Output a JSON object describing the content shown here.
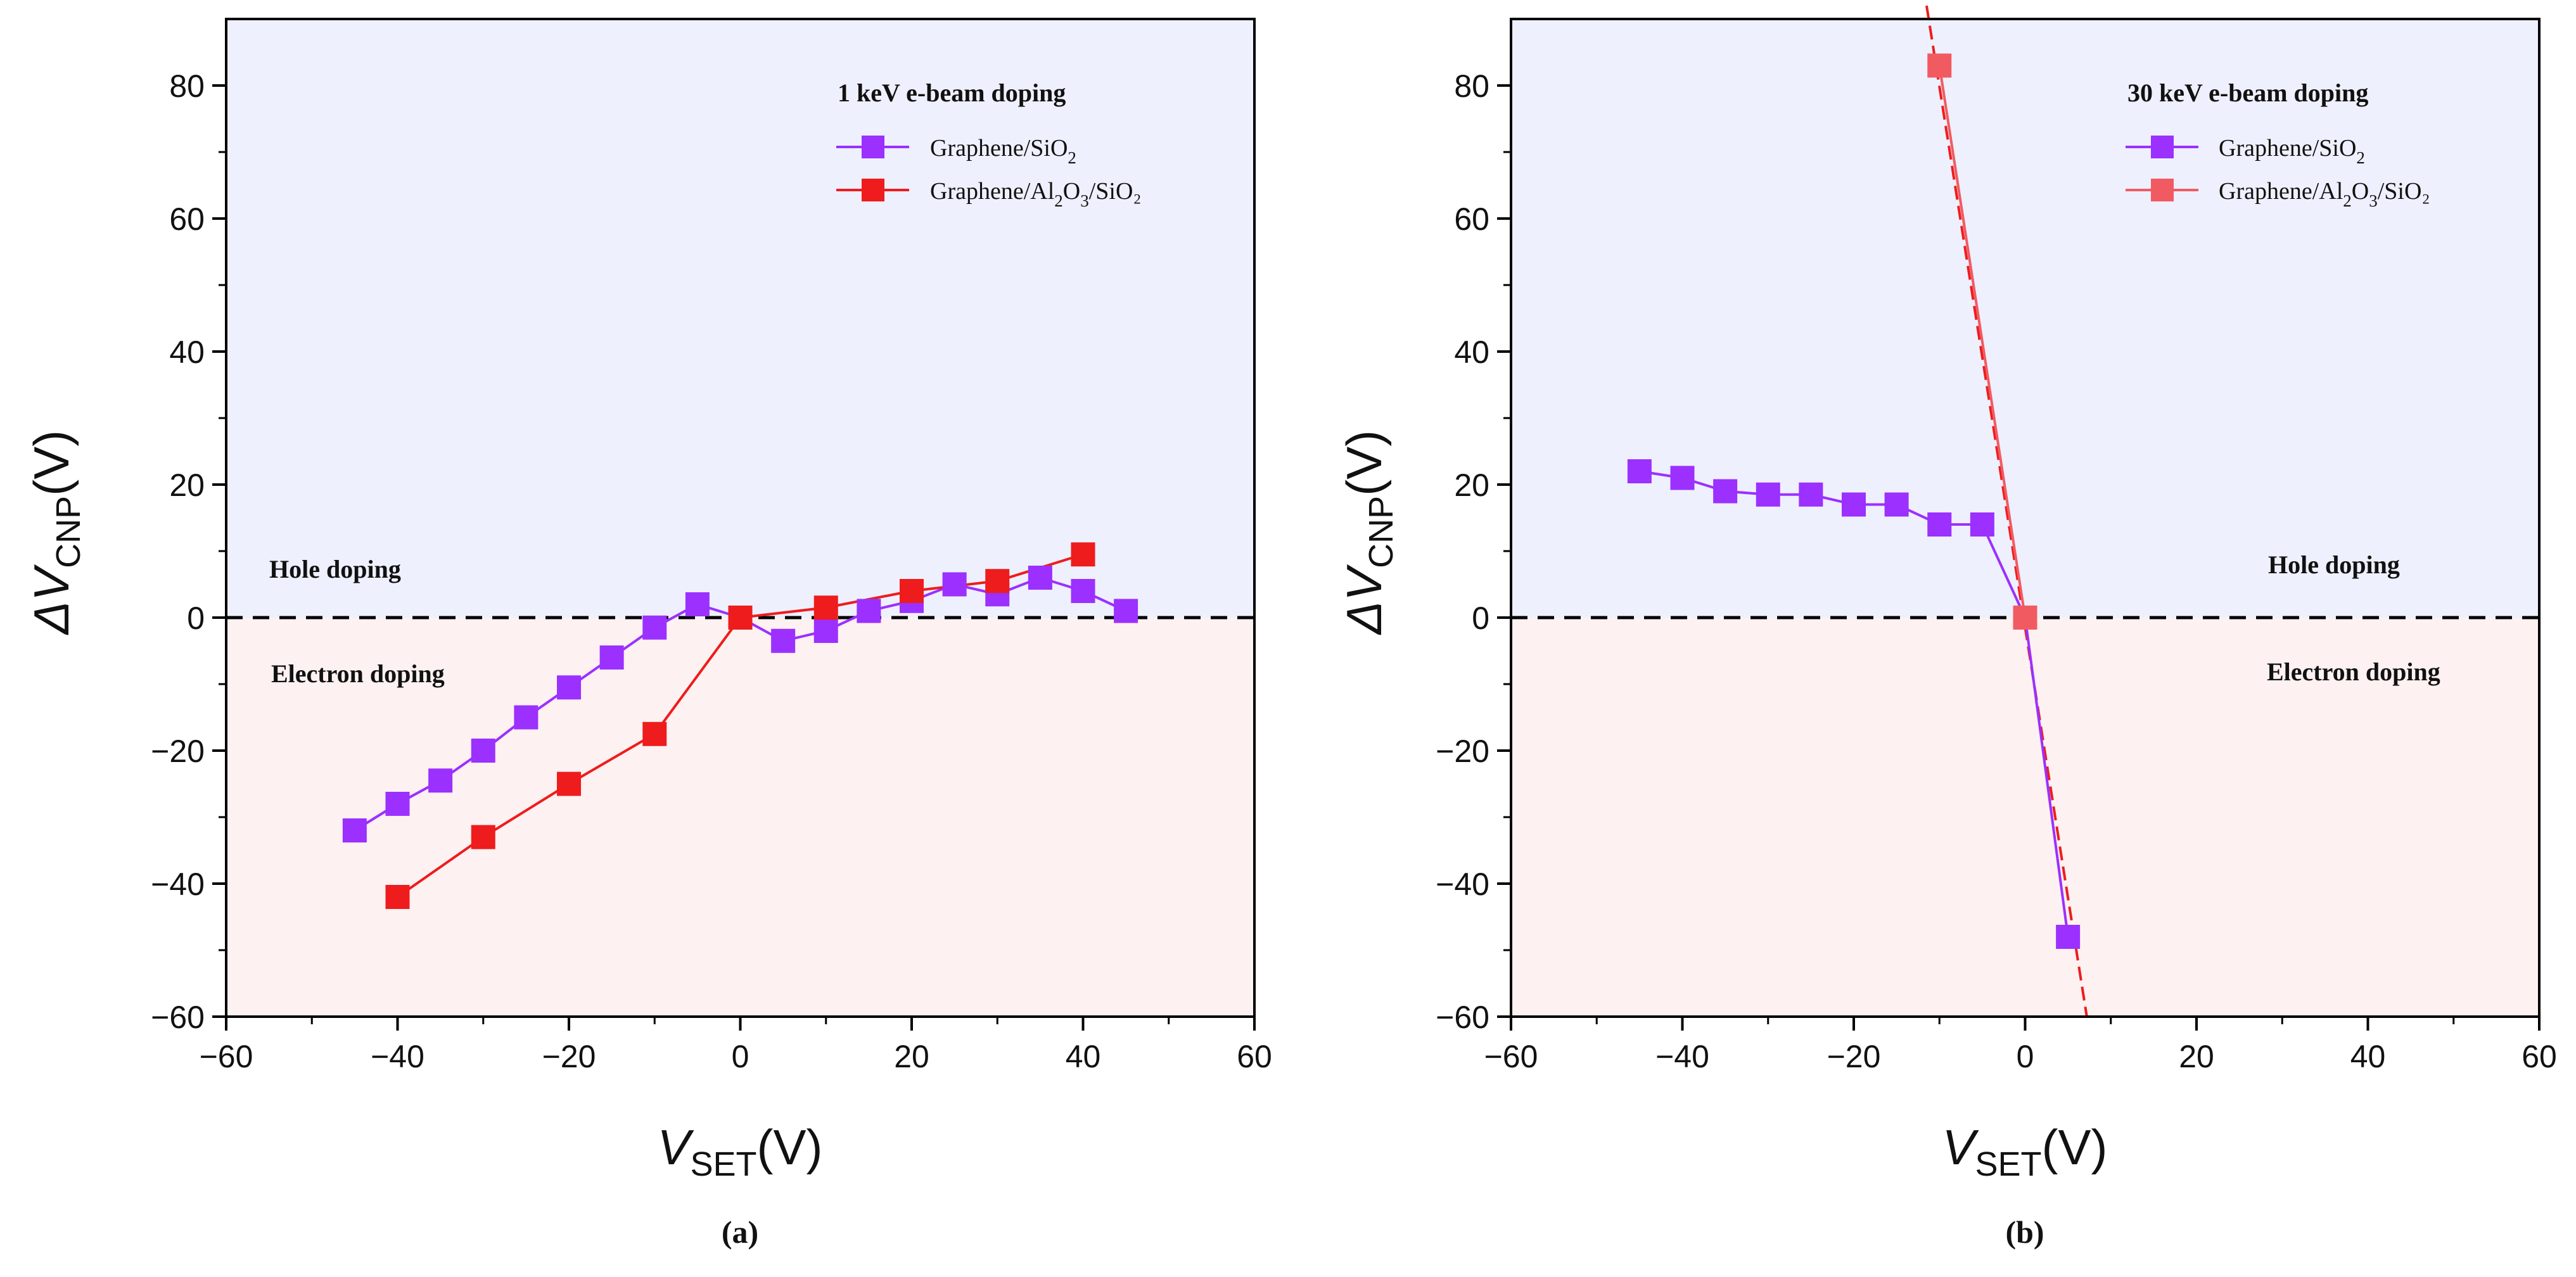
{
  "colors": {
    "series1": "#9b30ff",
    "series2": "#ee1c1c",
    "series2_b": "#f25a62",
    "hole_bg": "#eef0fd",
    "electron_bg": "#fdf1f1",
    "axis": "#000000"
  },
  "chart_data": [
    {
      "type": "line",
      "panel_caption": "(a)",
      "legend_title": "1 keV e-beam doping",
      "region_labels": {
        "upper": "Hole doping",
        "lower": "Electron doping"
      },
      "xlabel": {
        "main": "V",
        "sub": "SET",
        "unit": "(V)"
      },
      "ylabel": {
        "main": "ΔV",
        "sub": "CNP",
        "unit": "(V)"
      },
      "xlim": [
        -60,
        60
      ],
      "ylim": [
        -60,
        90
      ],
      "xticks": [
        "−60",
        "−40",
        "−20",
        "0",
        "20",
        "40",
        "60"
      ],
      "yticks": [
        "−60",
        "−40",
        "−20",
        "0",
        "20",
        "40",
        "60",
        "80"
      ],
      "xtick_values": [
        -60,
        -40,
        -20,
        0,
        20,
        40,
        60
      ],
      "ytick_values": [
        -60,
        -40,
        -20,
        0,
        20,
        40,
        60,
        80
      ],
      "series": [
        {
          "name": "Graphene/SiO2",
          "legend": {
            "a": "Graphene/SiO",
            "b": "2",
            "c": "",
            "d": "",
            "e": ""
          },
          "color_key": "series1",
          "x": [
            -45,
            -40,
            -35,
            -30,
            -25,
            -20,
            -15,
            -10,
            -5,
            0,
            5,
            10,
            15,
            20,
            25,
            30,
            35,
            40,
            45
          ],
          "y": [
            -32,
            -28,
            -24.5,
            -20,
            -15,
            -10.5,
            -6,
            -1.5,
            2,
            0,
            -3.5,
            -2,
            1,
            2.5,
            5,
            3.5,
            6,
            4,
            1
          ]
        },
        {
          "name": "Graphene/Al2O3/SiO2",
          "legend": {
            "a": "Graphene/Al",
            "b": "2",
            "c": "O",
            "d": "3",
            "e": "/SiO₂"
          },
          "color_key": "series2",
          "x": [
            -40,
            -30,
            -20,
            -10,
            0,
            10,
            20,
            30,
            40
          ],
          "y": [
            -42,
            -33,
            -25,
            -17.5,
            0,
            1.5,
            4,
            5.5,
            9.5
          ]
        }
      ]
    },
    {
      "type": "line",
      "panel_caption": "(b)",
      "legend_title": "30 keV e-beam doping",
      "region_labels": {
        "upper": "Hole doping",
        "lower": "Electron doping"
      },
      "xlabel": {
        "main": "V",
        "sub": "SET",
        "unit": "(V)"
      },
      "ylabel": {
        "main": "ΔV",
        "sub": "CNP",
        "unit": "(V)"
      },
      "xlim": [
        -60,
        60
      ],
      "ylim": [
        -60,
        90
      ],
      "xticks": [
        "−60",
        "−40",
        "−20",
        "0",
        "20",
        "40",
        "60"
      ],
      "yticks": [
        "−60",
        "−40",
        "−20",
        "0",
        "20",
        "40",
        "60",
        "80"
      ],
      "xtick_values": [
        -60,
        -40,
        -20,
        0,
        20,
        40,
        60
      ],
      "ytick_values": [
        -60,
        -40,
        -20,
        0,
        20,
        40,
        60,
        80
      ],
      "series": [
        {
          "name": "Graphene/SiO2",
          "legend": {
            "a": "Graphene/SiO",
            "b": "2",
            "c": "",
            "d": "",
            "e": ""
          },
          "color_key": "series1",
          "x": [
            -45,
            -40,
            -35,
            -30,
            -25,
            -20,
            -15,
            -10,
            -5,
            0,
            5
          ],
          "y": [
            22,
            21,
            19,
            18.5,
            18.5,
            17,
            17,
            14,
            14,
            0,
            -48
          ]
        },
        {
          "name": "Graphene/Al2O3/SiO2",
          "legend": {
            "a": "Graphene/Al",
            "b": "2",
            "c": "O",
            "d": "3",
            "e": "/SiO₂"
          },
          "color_key": "series2_b",
          "x": [
            -10,
            0
          ],
          "y": [
            83,
            0
          ]
        }
      ],
      "fit_line": {
        "x": [
          -11.5,
          7.2
        ],
        "y": [
          92,
          -60
        ],
        "color_key": "series2"
      }
    }
  ]
}
